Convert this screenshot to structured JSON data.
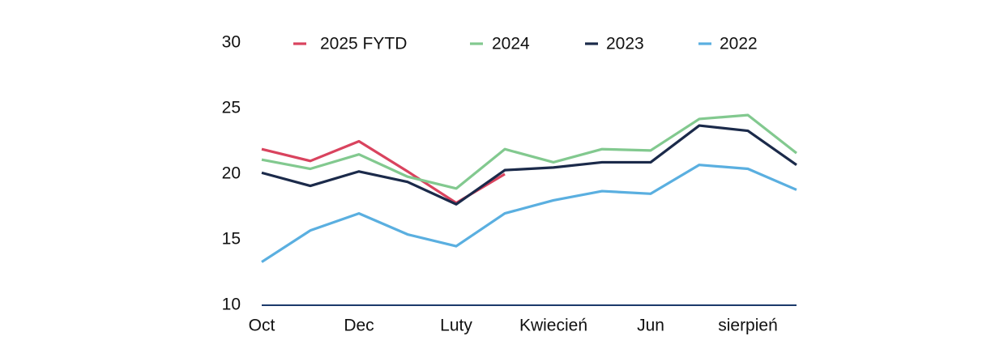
{
  "chart_data": {
    "type": "line",
    "categories": [
      "Oct",
      null,
      "Dec",
      null,
      "Luty",
      null,
      "Kwiecień",
      null,
      "Jun",
      null,
      "sierpień",
      null
    ],
    "series": [
      {
        "name": "2025 FYTD",
        "color": "#d9435e",
        "values": [
          21.9,
          21.0,
          22.5,
          20.2,
          17.8,
          20.0,
          null,
          null,
          null,
          null,
          null,
          null
        ]
      },
      {
        "name": "2024",
        "color": "#82c98f",
        "values": [
          21.1,
          20.4,
          21.5,
          19.8,
          18.9,
          21.9,
          20.9,
          21.9,
          21.8,
          24.2,
          24.5,
          21.6
        ]
      },
      {
        "name": "2023",
        "color": "#1b2a4a",
        "values": [
          20.1,
          19.1,
          20.2,
          19.4,
          17.7,
          20.3,
          20.5,
          20.9,
          20.9,
          23.7,
          23.3,
          20.7
        ]
      },
      {
        "name": "2022",
        "color": "#5aafe0",
        "values": [
          13.3,
          15.7,
          17.0,
          15.4,
          14.5,
          17.0,
          18.0,
          18.7,
          18.5,
          20.7,
          20.4,
          18.8
        ]
      }
    ],
    "ylim": [
      10,
      30
    ],
    "yticks": [
      10,
      15,
      20,
      25,
      30
    ],
    "legend": "top",
    "axis_color": "#1b3a6b"
  }
}
